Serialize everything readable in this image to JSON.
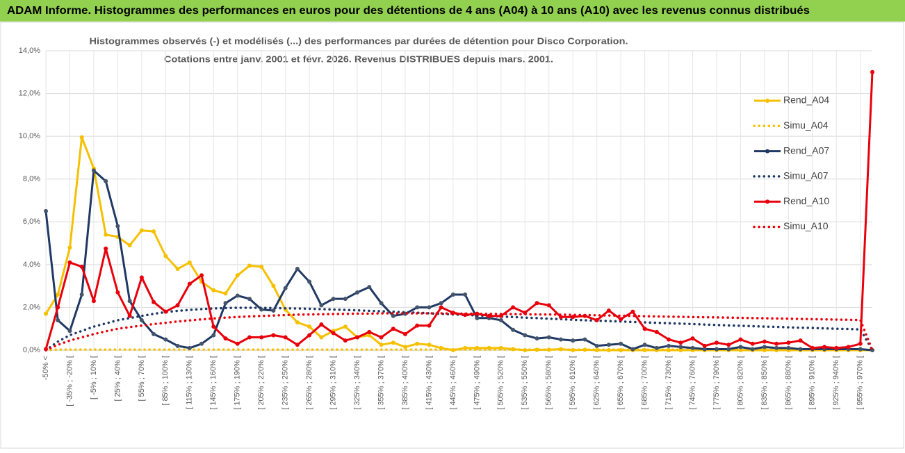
{
  "banner": "ADAM Informe. Histogrammes des performances en euros pour des détentions de 4 ans (A04) à 10 ans (A10) avec les revenus connus distribués",
  "chart_data": {
    "type": "line",
    "title": [
      "Histogrammes observés (-) et modélisés (...) des performances par durées de détention pour Disco Corporation.",
      "Cotations entre janv. 2001 et févr. 2026. Revenus DISTRIBUES depuis mars. 2001."
    ],
    "categories": [
      "-50% <",
      null,
      "[ -35% ; -20% [",
      null,
      "[ -5% ; 10% [",
      null,
      "[ 25% ; 40% [",
      null,
      "[ 55% ; 70% [",
      null,
      "[ 85% ; 100% [",
      null,
      "[ 115% ; 130% [",
      null,
      "[ 145% ; 160% [",
      null,
      "[ 175% ; 190% [",
      null,
      "[ 205% ; 220% [",
      null,
      "[ 235% ; 250% [",
      null,
      "[ 265% ; 280% [",
      null,
      "[ 295% ; 310% [",
      null,
      "[ 325% ; 340% [",
      null,
      "[ 355% ; 370% [",
      null,
      "[ 385% ; 400% [",
      null,
      "[ 415% ; 430% [",
      null,
      "[ 445% ; 460% [",
      null,
      "[ 475% ; 490% [",
      null,
      "[ 505% ; 520% [",
      null,
      "[ 535% ; 550% [",
      null,
      "[ 565% ; 580% [",
      null,
      "[ 595% ; 610% [",
      null,
      "[ 625% ; 640% [",
      null,
      "[ 655% ; 670% [",
      null,
      "[ 685% ; 700% [",
      null,
      "[ 715% ; 730% [",
      null,
      "[ 745% ; 760% [",
      null,
      "[ 775% ; 790% [",
      null,
      "[ 805% ; 820% [",
      null,
      "[ 835% ; 850% [",
      null,
      "[ 865% ; 880% [",
      null,
      "[ 895% ; 910% [",
      null,
      "[ 925% ; 940% [",
      null,
      "[ 955% ; 970% [",
      null
    ],
    "ylim": [
      0,
      14
    ],
    "yticks": [
      {
        "value": 0,
        "label": "0,0%"
      },
      {
        "value": 2,
        "label": "2,0%"
      },
      {
        "value": 4,
        "label": "4,0%"
      },
      {
        "value": 6,
        "label": "6,0%"
      },
      {
        "value": 8,
        "label": "8,0%"
      },
      {
        "value": 10,
        "label": "10,0%"
      },
      {
        "value": 12,
        "label": "12,0%"
      },
      {
        "value": 14,
        "label": "14,0%"
      }
    ],
    "grid": true,
    "legend": "right",
    "series": [
      {
        "name": "Rend_A04",
        "color": "#f5c000",
        "style": "solid",
        "markers": true,
        "values": [
          1.7,
          2.6,
          4.8,
          9.95,
          8.5,
          5.4,
          5.3,
          4.9,
          5.6,
          5.55,
          4.4,
          3.8,
          4.1,
          3.2,
          2.8,
          2.65,
          3.5,
          3.95,
          3.9,
          3.0,
          1.9,
          1.3,
          1.1,
          0.6,
          0.9,
          1.1,
          0.6,
          0.7,
          0.25,
          0.35,
          0.15,
          0.3,
          0.25,
          0.1,
          0.0,
          0.1,
          0.1,
          0.1,
          0.1,
          0.05,
          0.0,
          0.02,
          0.02,
          0.05,
          0.0,
          0.02,
          0.0,
          0.0,
          0.0,
          0.0,
          0,
          0,
          0,
          0,
          0,
          0,
          0,
          0,
          0,
          0,
          0,
          0,
          0,
          0,
          0,
          0,
          0,
          0,
          0,
          0
        ]
      },
      {
        "name": "Simu_A04",
        "color": "#f5c000",
        "style": "dotted",
        "markers": false,
        "values": [
          0,
          0.03,
          0.03,
          0.03,
          0.03,
          0.03,
          0.03,
          0.03,
          0.03,
          0.03,
          0.03,
          0.03,
          0.03,
          0.03,
          0.03,
          0.03,
          0.03,
          0.03,
          0.03,
          0.03,
          0.03,
          0.03,
          0.03,
          0.03,
          0.03,
          0.03,
          0.03,
          0.03,
          0.03,
          0.03,
          0.03,
          0.03,
          0.03,
          0.03,
          0.03,
          0.03,
          0.03,
          0.03,
          0.03,
          0.03,
          0.03,
          0.03,
          0.03,
          0.03,
          0.03,
          0.03,
          0.03,
          0.03,
          0.03,
          0.03,
          0.03,
          0.03,
          0.03,
          0.03,
          0.03,
          0.03,
          0.03,
          0.03,
          0.03,
          0.03,
          0.03,
          0.03,
          0.03,
          0.03,
          0.03,
          0.03,
          0.03,
          0.03,
          0.03,
          0
        ]
      },
      {
        "name": "Rend_A07",
        "color": "#1f3864",
        "style": "solid",
        "markers": true,
        "values": [
          6.5,
          1.4,
          0.9,
          2.6,
          8.4,
          7.9,
          5.8,
          2.3,
          1.4,
          0.75,
          0.5,
          0.2,
          0.1,
          0.3,
          0.7,
          2.2,
          2.55,
          2.4,
          1.9,
          1.85,
          2.9,
          3.8,
          3.2,
          2.1,
          2.4,
          2.4,
          2.7,
          2.95,
          2.2,
          1.6,
          1.7,
          2.0,
          2.0,
          2.2,
          2.6,
          2.6,
          1.5,
          1.5,
          1.4,
          0.95,
          0.7,
          0.55,
          0.6,
          0.5,
          0.45,
          0.5,
          0.2,
          0.25,
          0.3,
          0.05,
          0.25,
          0.1,
          0.2,
          0.15,
          0.1,
          0.05,
          0.05,
          0.05,
          0.15,
          0.05,
          0.15,
          0.1,
          0.1,
          0.05,
          0.05,
          0.05,
          0.05,
          0.05,
          0.05,
          0
        ]
      },
      {
        "name": "Simu_A07",
        "color": "#1f3864",
        "style": "dotted",
        "markers": false,
        "values": [
          0,
          0.4,
          0.7,
          0.9,
          1.1,
          1.25,
          1.4,
          1.5,
          1.6,
          1.7,
          1.78,
          1.84,
          1.88,
          1.92,
          1.95,
          1.97,
          1.98,
          1.98,
          1.98,
          1.97,
          1.96,
          1.95,
          1.94,
          1.92,
          1.9,
          1.88,
          1.86,
          1.84,
          1.82,
          1.8,
          1.77,
          1.75,
          1.72,
          1.7,
          1.67,
          1.65,
          1.62,
          1.6,
          1.57,
          1.55,
          1.52,
          1.5,
          1.47,
          1.45,
          1.42,
          1.4,
          1.38,
          1.36,
          1.34,
          1.32,
          1.3,
          1.28,
          1.26,
          1.24,
          1.22,
          1.2,
          1.18,
          1.16,
          1.14,
          1.12,
          1.1,
          1.09,
          1.07,
          1.05,
          1.04,
          1.02,
          1.0,
          0.99,
          0.97,
          0
        ]
      },
      {
        "name": "Rend_A10",
        "color": "#e8000b",
        "style": "solid",
        "markers": true,
        "values": [
          0.05,
          2.0,
          4.1,
          3.9,
          2.3,
          4.75,
          2.7,
          1.6,
          3.4,
          2.25,
          1.8,
          2.1,
          3.1,
          3.5,
          1.1,
          0.55,
          0.3,
          0.6,
          0.6,
          0.7,
          0.6,
          0.25,
          0.7,
          1.2,
          0.8,
          0.45,
          0.6,
          0.85,
          0.6,
          1.0,
          0.75,
          1.15,
          1.15,
          2.0,
          1.75,
          1.65,
          1.7,
          1.6,
          1.6,
          2.0,
          1.75,
          2.2,
          2.1,
          1.55,
          1.55,
          1.6,
          1.4,
          1.85,
          1.45,
          1.8,
          1.0,
          0.85,
          0.5,
          0.35,
          0.55,
          0.2,
          0.35,
          0.25,
          0.5,
          0.3,
          0.4,
          0.3,
          0.35,
          0.45,
          0.1,
          0.15,
          0.1,
          0.15,
          0.3,
          13.0
        ]
      },
      {
        "name": "Simu_A10",
        "color": "#e8000b",
        "style": "dotted",
        "markers": false,
        "values": [
          0,
          0.25,
          0.45,
          0.6,
          0.75,
          0.88,
          1.0,
          1.08,
          1.15,
          1.22,
          1.28,
          1.34,
          1.39,
          1.44,
          1.48,
          1.52,
          1.55,
          1.58,
          1.6,
          1.62,
          1.64,
          1.66,
          1.67,
          1.68,
          1.69,
          1.7,
          1.71,
          1.71,
          1.72,
          1.72,
          1.72,
          1.72,
          1.72,
          1.72,
          1.71,
          1.71,
          1.7,
          1.7,
          1.69,
          1.69,
          1.68,
          1.67,
          1.67,
          1.66,
          1.65,
          1.64,
          1.63,
          1.62,
          1.61,
          1.6,
          1.59,
          1.58,
          1.57,
          1.56,
          1.55,
          1.54,
          1.53,
          1.52,
          1.51,
          1.5,
          1.49,
          1.48,
          1.47,
          1.46,
          1.45,
          1.44,
          1.43,
          1.42,
          1.41,
          0
        ]
      }
    ]
  }
}
